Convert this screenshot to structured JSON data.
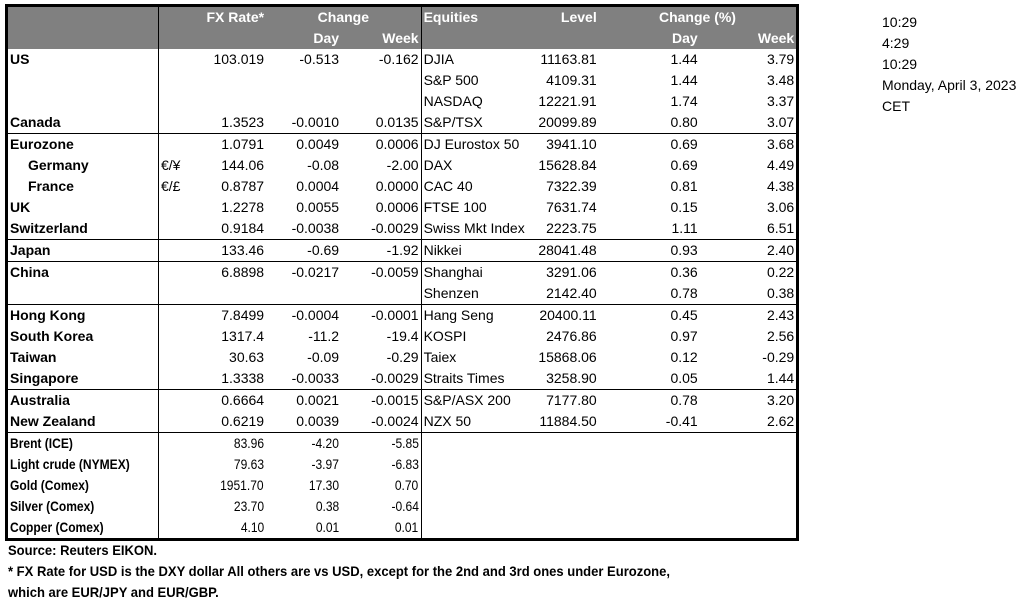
{
  "header": {
    "fx_rate": "FX Rate*",
    "change": "Change",
    "day": "Day",
    "week": "Week",
    "equities": "Equities",
    "level": "Level",
    "change_pct": "Change (%)",
    "eq_day": "Day",
    "eq_week": "Week"
  },
  "rows": [
    {
      "name": "US",
      "cur": "",
      "fx": "103.019",
      "day": "-0.513",
      "week": "-0.162",
      "eq": "DJIA",
      "level": "11163.81",
      "eday": "1.44",
      "eweek": "3.79"
    },
    {
      "name": "",
      "cur": "",
      "fx": "",
      "day": "",
      "week": "",
      "eq": "S&P 500",
      "level": "4109.31",
      "eday": "1.44",
      "eweek": "3.48"
    },
    {
      "name": "",
      "cur": "",
      "fx": "",
      "day": "",
      "week": "",
      "eq": "NASDAQ",
      "level": "12221.91",
      "eday": "1.74",
      "eweek": "3.37"
    },
    {
      "name": "Canada",
      "cur": "",
      "fx": "1.3523",
      "day": "-0.0010",
      "week": "0.0135",
      "eq": "S&P/TSX",
      "level": "20099.89",
      "eday": "0.80",
      "eweek": "3.07"
    },
    {
      "name": "Eurozone",
      "cur": "",
      "fx": "1.0791",
      "day": "0.0049",
      "week": "0.0006",
      "eq": "DJ Eurostox 50",
      "level": "3941.10",
      "eday": "0.69",
      "eweek": "3.68",
      "sep": true
    },
    {
      "name": "Germany",
      "indent": true,
      "cur": "€/¥",
      "fx": "144.06",
      "day": "-0.08",
      "week": "-2.00",
      "eq": "DAX",
      "level": "15628.84",
      "eday": "0.69",
      "eweek": "4.49"
    },
    {
      "name": "France",
      "indent": true,
      "cur": "€/£",
      "fx": "0.8787",
      "day": "0.0004",
      "week": "0.0000",
      "eq": "CAC 40",
      "level": "7322.39",
      "eday": "0.81",
      "eweek": "4.38"
    },
    {
      "name": "UK",
      "cur": "",
      "fx": "1.2278",
      "day": "0.0055",
      "week": "0.0006",
      "eq": "FTSE 100",
      "level": "7631.74",
      "eday": "0.15",
      "eweek": "3.06"
    },
    {
      "name": "Switzerland",
      "cur": "",
      "fx": "0.9184",
      "day": "-0.0038",
      "week": "-0.0029",
      "eq": "Swiss Mkt Index",
      "level": "2223.75",
      "eday": "1.11",
      "eweek": "6.51"
    },
    {
      "name": "Japan",
      "cur": "",
      "fx": "133.46",
      "day": "-0.69",
      "week": "-1.92",
      "eq": "Nikkei",
      "level": "28041.48",
      "eday": "0.93",
      "eweek": "2.40",
      "sep": true
    },
    {
      "name": "China",
      "cur": "",
      "fx": "6.8898",
      "day": "-0.0217",
      "week": "-0.0059",
      "eq": "Shanghai",
      "level": "3291.06",
      "eday": "0.36",
      "eweek": "0.22",
      "sep": true
    },
    {
      "name": "",
      "cur": "",
      "fx": "",
      "day": "",
      "week": "",
      "eq": "Shenzen",
      "level": "2142.40",
      "eday": "0.78",
      "eweek": "0.38"
    },
    {
      "name": "Hong Kong",
      "cur": "",
      "fx": "7.8499",
      "day": "-0.0004",
      "week": "-0.0001",
      "eq": "Hang Seng",
      "level": "20400.11",
      "eday": "0.45",
      "eweek": "2.43",
      "sep": true
    },
    {
      "name": "South Korea",
      "cur": "",
      "fx": "1317.4",
      "day": "-11.2",
      "week": "-19.4",
      "eq": "KOSPI",
      "level": "2476.86",
      "eday": "0.97",
      "eweek": "2.56"
    },
    {
      "name": "Taiwan",
      "cur": "",
      "fx": "30.63",
      "day": "-0.09",
      "week": "-0.29",
      "eq": "Taiex",
      "level": "15868.06",
      "eday": "0.12",
      "eweek": "-0.29"
    },
    {
      "name": "Singapore",
      "cur": "",
      "fx": "1.3338",
      "day": "-0.0033",
      "week": "-0.0029",
      "eq": "Straits Times",
      "level": "3258.90",
      "eday": "0.05",
      "eweek": "1.44"
    },
    {
      "name": "Australia",
      "cur": "",
      "fx": "0.6664",
      "day": "0.0021",
      "week": "-0.0015",
      "eq": "S&P/ASX  200",
      "level": "7177.80",
      "eday": "0.78",
      "eweek": "3.20",
      "sep": true
    },
    {
      "name": "New Zealand",
      "cur": "",
      "fx": "0.6219",
      "day": "0.0039",
      "week": "-0.0024",
      "eq": "NZX 50",
      "level": "11884.50",
      "eday": "-0.41",
      "eweek": "2.62"
    },
    {
      "name": "Brent (ICE)",
      "cur": "",
      "fx": "83.96",
      "day": "-4.20",
      "week": "-5.85",
      "eq": "",
      "level": "",
      "eday": "",
      "eweek": "",
      "sep": true,
      "narrow": true
    },
    {
      "name": "Light crude (NYMEX)",
      "cur": "",
      "fx": "79.63",
      "day": "-3.97",
      "week": "-6.83",
      "eq": "",
      "level": "",
      "eday": "",
      "eweek": "",
      "narrow": true
    },
    {
      "name": "Gold (Comex)",
      "cur": "",
      "fx": "1951.70",
      "day": "17.30",
      "week": "0.70",
      "eq": "",
      "level": "",
      "eday": "",
      "eweek": "",
      "narrow": true
    },
    {
      "name": "Silver (Comex)",
      "cur": "",
      "fx": "23.70",
      "day": "0.38",
      "week": "-0.64",
      "eq": "",
      "level": "",
      "eday": "",
      "eweek": "",
      "narrow": true
    },
    {
      "name": "Copper (Comex)",
      "cur": "",
      "fx": "4.10",
      "day": "0.01",
      "week": "0.01",
      "eq": "",
      "level": "",
      "eday": "",
      "eweek": "",
      "narrow": true
    }
  ],
  "side": [
    "10:29",
    "4:29",
    "10:29",
    "Monday, April 3, 2023",
    "CET"
  ],
  "notes": {
    "source": "Source:  Reuters EIKON.",
    "footnote1": "* FX Rate for USD is the DXY dollar  All others are vs USD, except for the 2nd and 3rd ones under Eurozone,",
    "footnote2": " which are EUR/JPY and EUR/GBP."
  }
}
